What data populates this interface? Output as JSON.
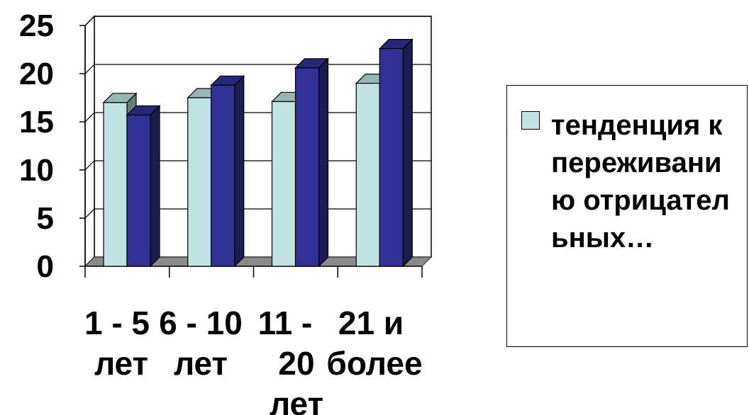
{
  "chart_data": {
    "type": "bar",
    "categories": [
      "1 - 5 лет",
      "6 - 10 лет",
      "11 - 20 лет",
      "21 и более"
    ],
    "category_lines": [
      [
        "1 - 5",
        "лет"
      ],
      [
        "6 - 10",
        "лет"
      ],
      [
        "11 - ",
        "20",
        "лет"
      ],
      [
        "21 и",
        "более"
      ]
    ],
    "series": [
      {
        "name": "тенденция к переживанию отрицательных...",
        "values": [
          17,
          17.5,
          17.1,
          19
        ],
        "color": "#bfe3e3"
      },
      {
        "values": [
          15.7,
          18.8,
          20.6,
          22.6
        ],
        "color": "#323296"
      }
    ],
    "yticks": [
      0,
      5,
      10,
      15,
      20,
      25
    ],
    "ylim": [
      0,
      25
    ],
    "grid": true,
    "legend_position": "right",
    "legend_text": "тенденция к переживанию отрицательных…",
    "colors": {
      "floor": "#8a8a8a",
      "grid": "#000000",
      "background": "#ffffff"
    }
  }
}
